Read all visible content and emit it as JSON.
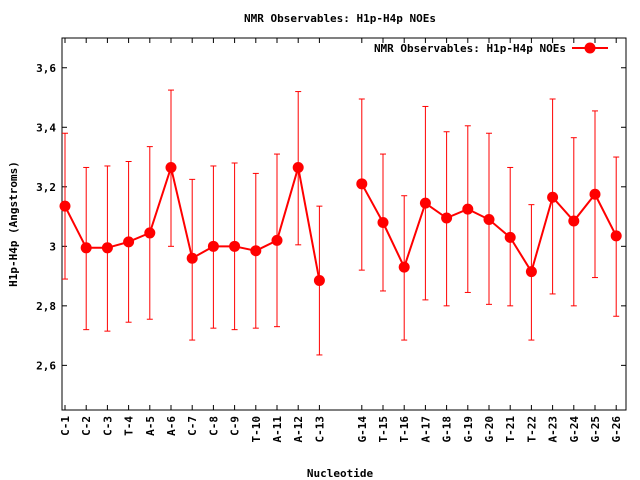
{
  "chart_data": {
    "type": "line",
    "title": "NMR Observables: H1p-H4p NOEs",
    "xlabel": "Nucleotide",
    "ylabel": "H1p-H4p (Angstroms)",
    "ylim": [
      2.45,
      3.7
    ],
    "yticks": [
      2.6,
      2.8,
      3,
      3.2,
      3.4,
      3.6
    ],
    "ytick_labels": [
      "2,6",
      "2,8",
      "3",
      "3,2",
      "3,4",
      "3,6"
    ],
    "grid": false,
    "legend_position": "top-right",
    "color": "#ff0000",
    "series": [
      {
        "name": "NMR Observables: H1p-H4p NOEs",
        "segments": [
          {
            "categories": [
              "C-1",
              "C-2",
              "C-3",
              "T-4",
              "A-5",
              "A-6",
              "C-7",
              "C-8",
              "C-9",
              "T-10",
              "A-11",
              "A-12",
              "C-13"
            ],
            "values": [
              3.135,
              2.995,
              2.995,
              3.015,
              3.045,
              3.265,
              2.96,
              3.0,
              3.0,
              2.985,
              3.02,
              3.265,
              2.885
            ],
            "error_low": [
              2.89,
              2.72,
              2.715,
              2.745,
              2.755,
              3.0,
              2.685,
              2.725,
              2.72,
              2.725,
              2.73,
              3.005,
              2.635
            ],
            "error_high": [
              3.38,
              3.265,
              3.27,
              3.285,
              3.335,
              3.525,
              3.225,
              3.27,
              3.28,
              3.245,
              3.31,
              3.52,
              3.135
            ]
          },
          {
            "categories": [
              "G-14",
              "T-15",
              "T-16",
              "A-17",
              "G-18",
              "G-19",
              "G-20",
              "T-21",
              "T-22",
              "A-23",
              "G-24",
              "G-25",
              "G-26"
            ],
            "values": [
              3.21,
              3.08,
              2.93,
              3.145,
              3.095,
              3.125,
              3.09,
              3.03,
              2.915,
              3.165,
              3.085,
              3.175,
              3.035
            ],
            "error_low": [
              2.92,
              2.85,
              2.685,
              2.82,
              2.8,
              2.845,
              2.805,
              2.8,
              2.685,
              2.84,
              2.8,
              2.895,
              2.765
            ],
            "error_high": [
              3.495,
              3.31,
              3.17,
              3.47,
              3.385,
              3.405,
              3.38,
              3.265,
              3.14,
              3.495,
              3.365,
              3.455,
              3.3
            ]
          }
        ]
      }
    ]
  }
}
